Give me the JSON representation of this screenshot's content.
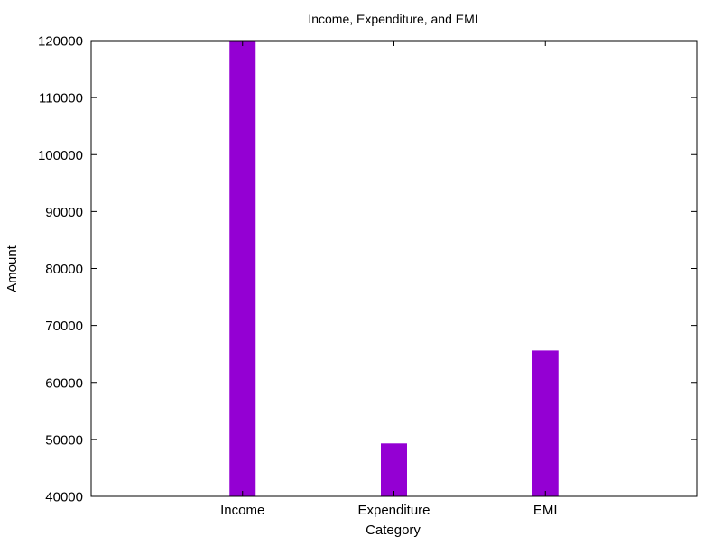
{
  "chart_data": {
    "type": "bar",
    "title": "Income, Expenditure, and EMI",
    "xlabel": "Category",
    "ylabel": "Amount",
    "categories": [
      "Income",
      "Expenditure",
      "EMI"
    ],
    "values": [
      120000,
      49300,
      65600
    ],
    "ylim": [
      40000,
      120000
    ],
    "yticks": [
      40000,
      50000,
      60000,
      70000,
      80000,
      90000,
      100000,
      110000,
      120000
    ],
    "bar_color": "#9400D3",
    "grid": false,
    "legend": "none"
  }
}
